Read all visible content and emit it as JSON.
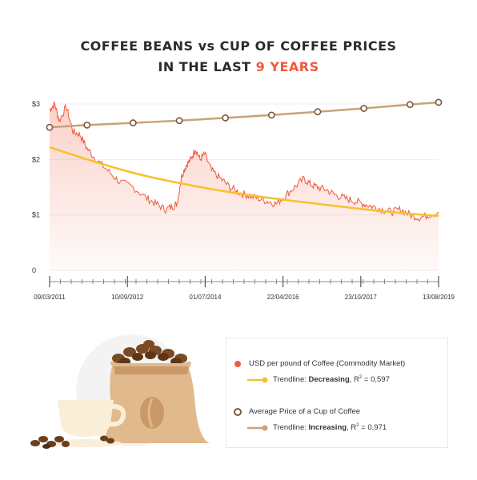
{
  "title": {
    "line1": "COFFEE BEANS vs CUP OF COFFEE PRICES",
    "line2_prefix": "IN THE LAST ",
    "line2_highlight": "9 YEARS"
  },
  "colors": {
    "bean_series": "#f05a3c",
    "bean_trend": "#f7c12b",
    "cup_series": "#c8a27a",
    "highlight": "#f05a3c"
  },
  "legend": {
    "item1_label": "USD per pound of Coffee (Commodity Market)",
    "item1_trend_prefix": "Trendline: ",
    "item1_trend_word": "Decreasing",
    "item1_trend_r": ", R",
    "item1_trend_value": " = 0,597",
    "item2_label": "Average Price of a Cup of Coffee",
    "item2_trend_prefix": "Trendline: ",
    "item2_trend_word": "Increasing",
    "item2_trend_r": ", R",
    "item2_trend_value": " = 0,971",
    "superscript": "2"
  },
  "chart_data": {
    "type": "line",
    "title": "COFFEE BEANS vs CUP OF COFFEE PRICES IN THE LAST 9 YEARS",
    "x_tick_labels": [
      "09/03/2011",
      "10/09/2012",
      "01/07/2014",
      "22/04/2016",
      "23/10/2017",
      "13/08/2019"
    ],
    "y_tick_labels": [
      "0",
      "$1",
      "$2",
      "$3"
    ],
    "ylim": [
      0,
      3
    ],
    "x_range_years": [
      2011.19,
      2019.62
    ],
    "series": [
      {
        "name": "USD per pound of Coffee (Commodity Market)",
        "x": [
          2011.19,
          2011.3,
          2011.4,
          2011.55,
          2011.7,
          2011.85,
          2012.0,
          2012.2,
          2012.45,
          2012.7,
          2013.0,
          2013.3,
          2013.5,
          2013.7,
          2013.85,
          2013.95,
          2014.05,
          2014.15,
          2014.25,
          2014.35,
          2014.45,
          2014.55,
          2014.7,
          2014.9,
          2015.1,
          2015.3,
          2015.5,
          2015.7,
          2015.9,
          2016.1,
          2016.3,
          2016.5,
          2016.7,
          2016.85,
          2017.0,
          2017.2,
          2017.4,
          2017.6,
          2017.8,
          2018.0,
          2018.2,
          2018.4,
          2018.6,
          2018.8,
          2019.0,
          2019.2,
          2019.4,
          2019.62
        ],
        "values": [
          2.9,
          3.0,
          2.7,
          2.95,
          2.5,
          2.45,
          2.2,
          2.0,
          1.8,
          1.6,
          1.5,
          1.3,
          1.2,
          1.1,
          1.15,
          1.2,
          1.7,
          1.9,
          2.0,
          2.2,
          2.0,
          2.1,
          1.8,
          1.65,
          1.5,
          1.4,
          1.35,
          1.3,
          1.25,
          1.2,
          1.35,
          1.5,
          1.65,
          1.55,
          1.5,
          1.45,
          1.35,
          1.3,
          1.25,
          1.2,
          1.15,
          1.1,
          1.05,
          1.1,
          1.0,
          0.95,
          1.0,
          1.05
        ]
      },
      {
        "name": "Trendline: Decreasing, R² = 0,597",
        "x": [
          2011.19,
          2012.0,
          2013.0,
          2014.0,
          2015.0,
          2016.0,
          2017.0,
          2018.0,
          2019.0,
          2019.62
        ],
        "values": [
          2.22,
          2.0,
          1.75,
          1.57,
          1.42,
          1.3,
          1.2,
          1.1,
          1.02,
          0.98
        ]
      },
      {
        "name": "Average Price of a Cup of Coffee",
        "x": [
          2011.19,
          2012.0,
          2013.0,
          2014.0,
          2015.0,
          2016.0,
          2017.0,
          2018.0,
          2019.0,
          2019.62
        ],
        "values": [
          2.58,
          2.62,
          2.66,
          2.7,
          2.75,
          2.8,
          2.86,
          2.92,
          2.99,
          3.03
        ]
      }
    ]
  }
}
